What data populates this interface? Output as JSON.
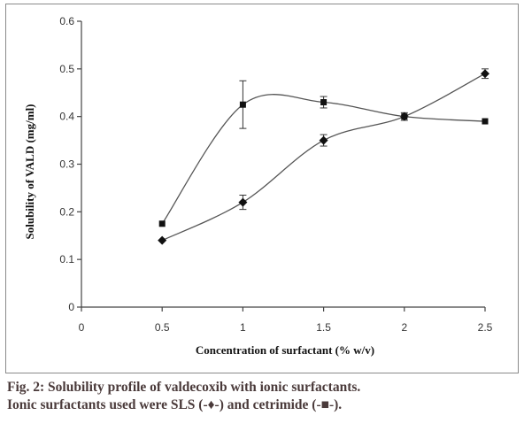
{
  "chart_data": {
    "type": "line",
    "ylabel": "Solubility of VALD (mg/ml)",
    "xlabel": "Concentration of surfactant (% w/v)",
    "xlim": [
      0,
      2.5
    ],
    "ylim": [
      0,
      0.6
    ],
    "x_ticks": [
      "0",
      "0.5",
      "1",
      "1.5",
      "2",
      "2.5"
    ],
    "y_ticks": [
      "0",
      "0.1",
      "0.2",
      "0.3",
      "0.4",
      "0.5",
      "0.6"
    ],
    "grid": false,
    "series": [
      {
        "name": "SLS",
        "marker": "diamond",
        "x": [
          0.5,
          1,
          1.5,
          2,
          2.5
        ],
        "y": [
          0.14,
          0.22,
          0.35,
          0.4,
          0.49
        ],
        "err": [
          0.0,
          0.015,
          0.012,
          0.008,
          0.01
        ]
      },
      {
        "name": "cetrimide",
        "marker": "square",
        "x": [
          0.5,
          1,
          1.5,
          2,
          2.5
        ],
        "y": [
          0.175,
          0.425,
          0.43,
          0.4,
          0.39
        ],
        "err": [
          0.0,
          0.05,
          0.012,
          0.0,
          0.0
        ]
      }
    ]
  },
  "caption": {
    "line1": "Fig. 2: Solubility profile of valdecoxib with ionic surfactants.",
    "line2": "Ionic surfactants used were SLS (-♦-) and cetrimide (-■-)."
  }
}
